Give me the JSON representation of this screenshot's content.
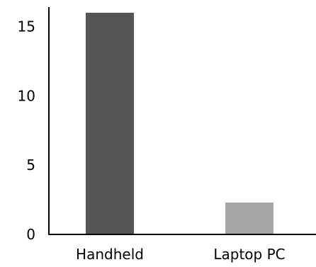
{
  "chart_data": {
    "type": "bar",
    "title": "",
    "xlabel": "",
    "ylabel": "",
    "categories": [
      "Handheld",
      "Laptop PC"
    ],
    "values": [
      16,
      2.3
    ],
    "colors": [
      "#555555",
      "#a6a6a6"
    ],
    "ylim": [
      0,
      16
    ],
    "yticks": [
      0,
      5,
      10,
      15
    ],
    "grid": false,
    "legend": "none"
  }
}
